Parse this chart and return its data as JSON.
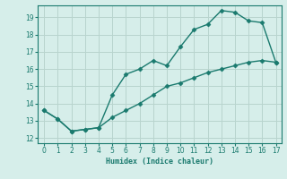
{
  "xlabel": "Humidex (Indice chaleur)",
  "xlim": [
    -0.5,
    17.4
  ],
  "ylim": [
    11.7,
    19.7
  ],
  "yticks": [
    12,
    13,
    14,
    15,
    16,
    17,
    18,
    19
  ],
  "xticks": [
    0,
    1,
    2,
    3,
    4,
    5,
    6,
    7,
    8,
    9,
    10,
    11,
    12,
    13,
    14,
    15,
    16,
    17
  ],
  "bg_color": "#d6eeea",
  "grid_color": "#b8d4ce",
  "line_color": "#1a7a6e",
  "line1_x": [
    0,
    1,
    2,
    3,
    4,
    5,
    6,
    7,
    8,
    9,
    10,
    11,
    12,
    13,
    14,
    15,
    16,
    17
  ],
  "line1_y": [
    13.6,
    13.1,
    12.4,
    12.5,
    12.6,
    14.5,
    15.7,
    16.0,
    16.5,
    16.2,
    17.3,
    18.3,
    18.6,
    19.4,
    19.3,
    18.8,
    18.7,
    16.4
  ],
  "line2_x": [
    0,
    1,
    2,
    3,
    4,
    5,
    6,
    7,
    8,
    9,
    10,
    11,
    12,
    13,
    14,
    15,
    16,
    17
  ],
  "line2_y": [
    13.6,
    13.1,
    12.4,
    12.5,
    12.6,
    13.2,
    13.6,
    14.0,
    14.5,
    15.0,
    15.2,
    15.5,
    15.8,
    16.0,
    16.2,
    16.4,
    16.5,
    16.4
  ],
  "marker": "D",
  "markersize": 2.5,
  "linewidth": 1.0
}
